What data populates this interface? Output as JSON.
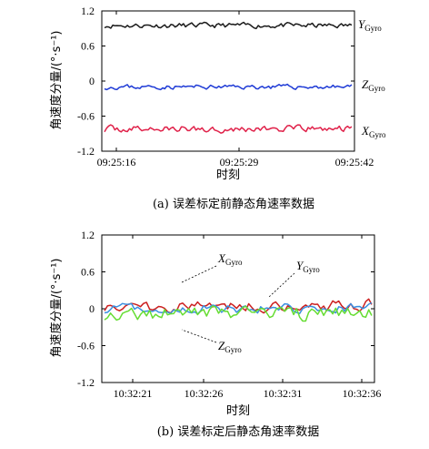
{
  "chart_data": [
    {
      "type": "line",
      "caption": "(a) 误差标定前静态角速率数据",
      "xlabel": "时刻",
      "ylabel": "角速度分量/(°·s⁻¹)",
      "xticks": [
        "09:25:16",
        "09:25:29",
        "09:25:42"
      ],
      "yticks": [
        "1.2",
        "0.6",
        "0",
        "-0.6",
        "-1.2"
      ],
      "ytick_values": [
        1.2,
        0.6,
        0,
        -0.6,
        -1.2
      ],
      "ylim": [
        -1.2,
        1.2
      ],
      "grid": false,
      "series": [
        {
          "name": "Y",
          "sub": "Gyro",
          "color": "#1a1a1a",
          "mean": 0.95,
          "amp": 0.07,
          "n": 120
        },
        {
          "name": "Z",
          "sub": "Gyro",
          "color": "#1f3bd6",
          "mean": -0.1,
          "amp": 0.06,
          "n": 120
        },
        {
          "name": "X",
          "sub": "Gyro",
          "color": "#e0224a",
          "mean": -0.82,
          "amp": 0.09,
          "n": 120
        }
      ]
    },
    {
      "type": "line",
      "caption": "(b) 误差标定后静态角速率数据",
      "xlabel": "时刻",
      "ylabel": "角速度分量/(°·s⁻¹)",
      "xticks": [
        "10:32:21",
        "10:32:26",
        "10:32:31",
        "10:32:36"
      ],
      "yticks": [
        "1.2",
        "0.6",
        "0",
        "-0.6",
        "-1.2"
      ],
      "ytick_values": [
        1.2,
        0.6,
        0,
        -0.6,
        -1.2
      ],
      "ylim": [
        -1.2,
        1.2
      ],
      "grid": false,
      "series": [
        {
          "name": "X",
          "sub": "Gyro",
          "color": "#cc2020",
          "mean": 0.05,
          "amp": 0.15,
          "n": 90
        },
        {
          "name": "Y",
          "sub": "Gyro",
          "color": "#3a8fe0",
          "mean": 0.0,
          "amp": 0.12,
          "n": 90
        },
        {
          "name": "Z",
          "sub": "Gyro",
          "color": "#66dd33",
          "mean": -0.08,
          "amp": 0.18,
          "n": 90
        }
      ]
    }
  ]
}
